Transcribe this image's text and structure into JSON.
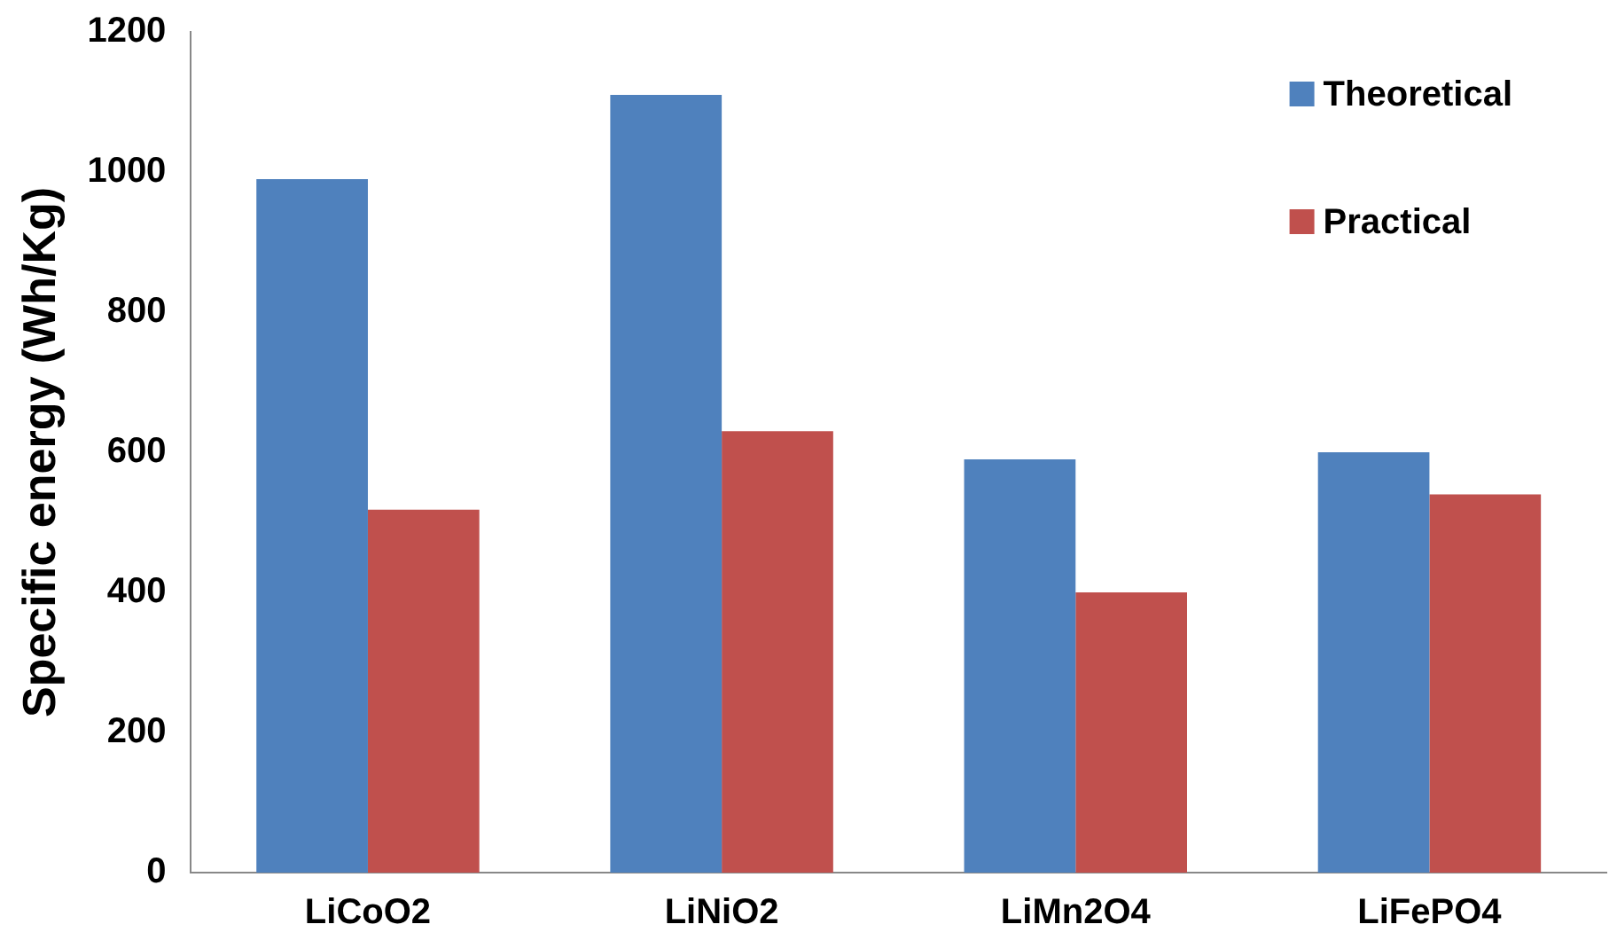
{
  "chart_data": {
    "type": "bar",
    "ylabel": "Specific energy (Wh/Kg)",
    "categories": [
      "LiCoO2",
      "LiNiO2",
      "LiMn2O4",
      "LiFePO4"
    ],
    "series": [
      {
        "name": "Theoretical",
        "color": "#4f81bd",
        "values": [
          990,
          1110,
          590,
          600
        ]
      },
      {
        "name": "Practical",
        "color": "#c0504d",
        "values": [
          518,
          630,
          400,
          540
        ]
      }
    ],
    "ylim": [
      0,
      1200
    ],
    "yticks": [
      0,
      200,
      400,
      600,
      800,
      1000,
      1200
    ],
    "grid": false,
    "legend": "top right"
  }
}
